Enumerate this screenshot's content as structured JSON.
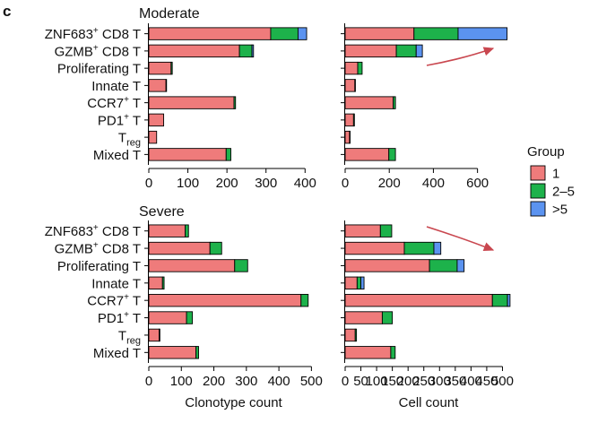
{
  "panel_label": "c",
  "colors": {
    "group_1": "#ef7b7b",
    "group_2_5": "#1db24b",
    "group_gt5": "#5b93f0",
    "arrow": "#c9474f"
  },
  "legend": {
    "title": "Group",
    "items": [
      {
        "label": "1",
        "color": "#ef7b7b"
      },
      {
        "label": "2–5",
        "color": "#1db24b"
      },
      {
        "label": ">5",
        "color": "#5b93f0"
      }
    ]
  },
  "chart_data": [
    {
      "type": "bar",
      "orientation": "horizontal",
      "stacked": true,
      "section": "Moderate",
      "title": "Moderate",
      "xlabel": "",
      "xlim": [
        0,
        420
      ],
      "xticks": [
        "0",
        "100",
        "200",
        "300",
        "400"
      ],
      "xtick_values": [
        0,
        100,
        200,
        300,
        400
      ],
      "categories": [
        "ZNF683⁺ CD8 T",
        "GZMB⁺ CD8 T",
        "Proliferating T",
        "Innate T",
        "CCR7⁺ T",
        "PD1⁺ T",
        "Treg",
        "Mixed T"
      ],
      "series": [
        {
          "name": "1",
          "values": [
            312,
            232,
            57,
            44,
            218,
            38,
            20,
            198
          ]
        },
        {
          "name": "2–5",
          "values": [
            70,
            32,
            3,
            1,
            4,
            0,
            0,
            12
          ]
        },
        {
          "name": ">5",
          "values": [
            22,
            4,
            0,
            0,
            0,
            0,
            0,
            0
          ]
        }
      ]
    },
    {
      "type": "bar",
      "orientation": "horizontal",
      "stacked": true,
      "section": "Moderate",
      "title": "",
      "xlabel": "",
      "xlim": [
        0,
        760
      ],
      "xticks": [
        "0",
        "200",
        "400",
        "600"
      ],
      "xtick_values": [
        0,
        200,
        400,
        600
      ],
      "categories": [
        "ZNF683⁺ CD8 T",
        "GZMB⁺ CD8 T",
        "Proliferating T",
        "Innate T",
        "CCR7⁺ T",
        "PD1⁺ T",
        "Treg",
        "Mixed T"
      ],
      "series": [
        {
          "name": "1",
          "values": [
            312,
            232,
            57,
            44,
            218,
            38,
            20,
            198
          ]
        },
        {
          "name": "2–5",
          "values": [
            200,
            90,
            20,
            2,
            10,
            4,
            1,
            30
          ]
        },
        {
          "name": ">5",
          "values": [
            222,
            28,
            0,
            0,
            0,
            0,
            0,
            0
          ]
        }
      ],
      "annotation": "arrow"
    },
    {
      "type": "bar",
      "orientation": "horizontal",
      "stacked": true,
      "section": "Severe",
      "title": "Severe",
      "xlabel": "Clonotype count",
      "xlim": [
        0,
        510
      ],
      "xticks": [
        "0",
        "100",
        "200",
        "300",
        "400",
        "500"
      ],
      "xtick_values": [
        0,
        100,
        200,
        300,
        400,
        500
      ],
      "categories": [
        "ZNF683⁺ CD8 T",
        "GZMB⁺ CD8 T",
        "Proliferating T",
        "Innate T",
        "CCR7⁺ T",
        "PD1⁺ T",
        "Treg",
        "Mixed T"
      ],
      "series": [
        {
          "name": "1",
          "values": [
            112,
            188,
            264,
            42,
            468,
            116,
            32,
            145
          ]
        },
        {
          "name": "2–5",
          "values": [
            10,
            36,
            40,
            5,
            22,
            18,
            2,
            8
          ]
        },
        {
          "name": ">5",
          "values": [
            0,
            0,
            0,
            0,
            0,
            0,
            0,
            0
          ]
        }
      ]
    },
    {
      "type": "bar",
      "orientation": "horizontal",
      "stacked": true,
      "section": "Severe",
      "title": "",
      "xlabel": "Cell count",
      "xlim": [
        0,
        530
      ],
      "xticks": [
        "0",
        "50",
        "100",
        "150",
        "200",
        "250",
        "300",
        "350",
        "400",
        "450",
        "500"
      ],
      "xtick_values": [
        0,
        50,
        100,
        150,
        200,
        250,
        300,
        350,
        400,
        450,
        500
      ],
      "categories": [
        "ZNF683⁺ CD8 T",
        "GZMB⁺ CD8 T",
        "Proliferating T",
        "Innate T",
        "CCR7⁺ T",
        "PD1⁺ T",
        "Treg",
        "Mixed T"
      ],
      "series": [
        {
          "name": "1",
          "values": [
            112,
            188,
            268,
            38,
            468,
            118,
            32,
            145
          ]
        },
        {
          "name": "2–5",
          "values": [
            36,
            94,
            88,
            12,
            48,
            32,
            4,
            14
          ]
        },
        {
          "name": ">5",
          "values": [
            0,
            22,
            22,
            10,
            8,
            0,
            0,
            0
          ]
        }
      ],
      "annotation": "arrow"
    }
  ]
}
